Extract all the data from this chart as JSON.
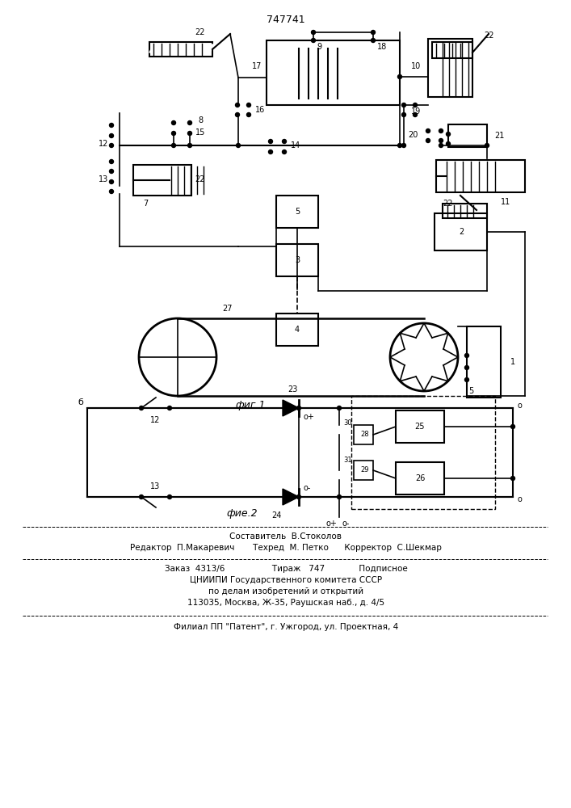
{
  "patent_number": "747741",
  "fig1_caption": "фиг.1",
  "fig2_caption": "фие.2",
  "background_color": "#ffffff",
  "line_color": "#000000",
  "footer_lines": [
    "Составитель  В.Стоколов",
    "Редактор  П.Макаревич       Техред  М. Петко      Корректор  С.Шекмар",
    "Заказ  4313/6                  Тираж   747             Подписное",
    "ЦНИИПИ Государственного комитета СССР",
    "по делам изобретений и открытий",
    "113035, Москва, Ж-35, Раушская наб., д. 4/5",
    "Филиал ПП \"Патент\", г. Ужгород, ул. Проектная, 4"
  ]
}
